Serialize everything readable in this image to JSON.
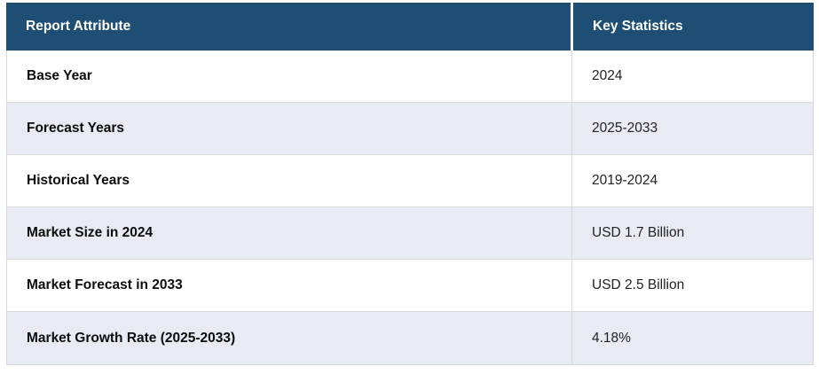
{
  "table": {
    "columns": [
      {
        "label": "Report Attribute"
      },
      {
        "label": "Key Statistics"
      }
    ],
    "rows": [
      {
        "attribute": "Base Year",
        "value": "2024"
      },
      {
        "attribute": "Forecast Years",
        "value": "2025-2033"
      },
      {
        "attribute": "Historical Years",
        "value": "2019-2024"
      },
      {
        "attribute": "Market Size in 2024",
        "value": "USD 1.7 Billion"
      },
      {
        "attribute": "Market Forecast in 2033",
        "value": "USD 2.5 Billion"
      },
      {
        "attribute": "Market Growth Rate (2025-2033)",
        "value": "4.18%"
      }
    ],
    "colors": {
      "header_bg": "#1F4E74",
      "header_text": "#FFFFFF",
      "row_bg": "#FFFFFF",
      "row_alt_bg": "#E8EAF4",
      "border": "#D9D9DD",
      "attribute_text": "#0D0D0D",
      "value_text": "#222222"
    }
  }
}
